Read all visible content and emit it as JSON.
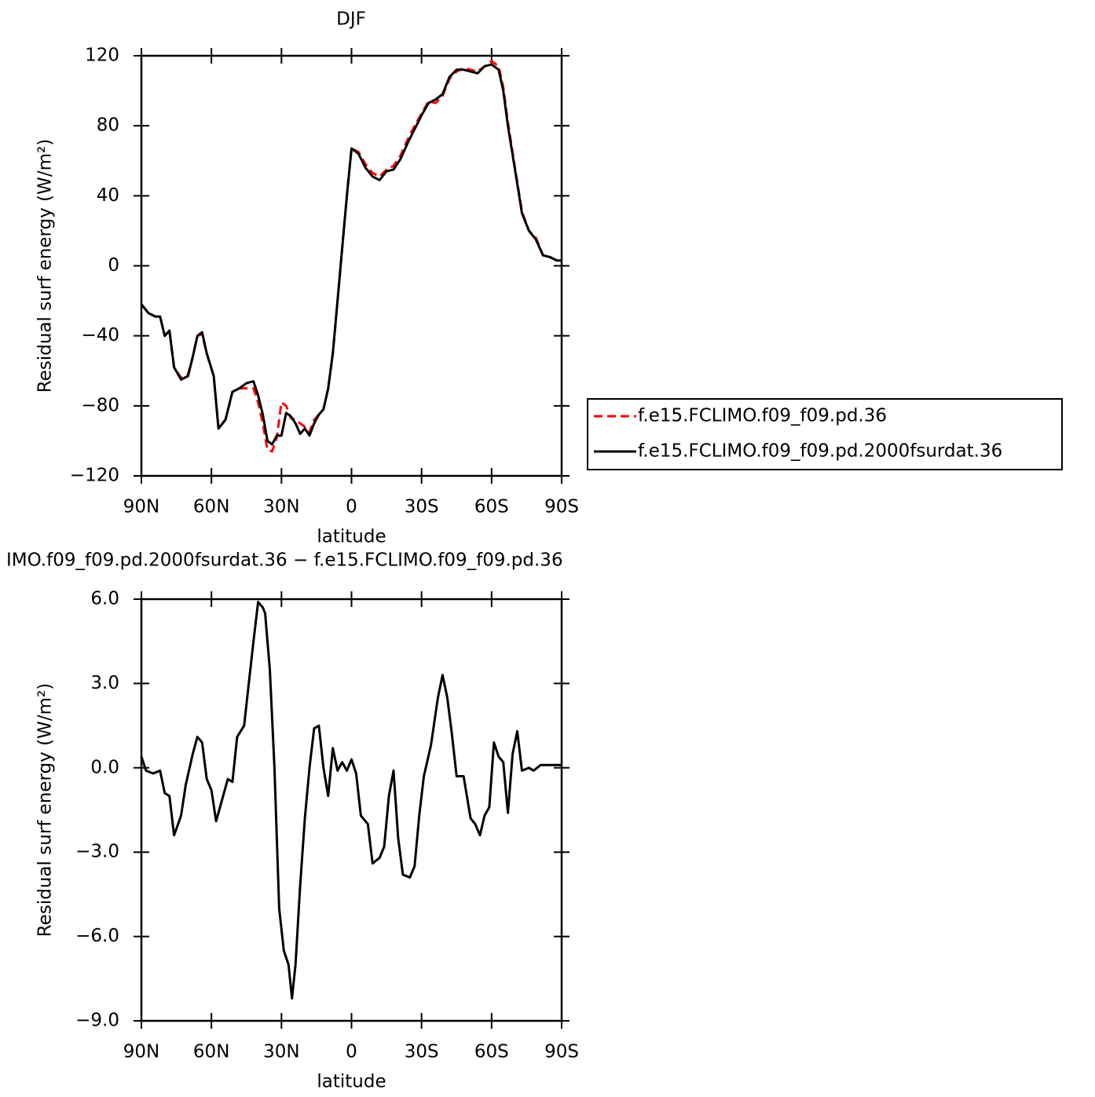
{
  "chart_data": [
    {
      "type": "line",
      "title": "DJF",
      "xlabel": "latitude",
      "ylabel": "Residual surf energy (W/m²)",
      "x": [
        90,
        87,
        84,
        82,
        80,
        78,
        76,
        73,
        70,
        68,
        66,
        64,
        62,
        59,
        57,
        54,
        51,
        48,
        45,
        42,
        40,
        38,
        36,
        34,
        32,
        30,
        28,
        26,
        24,
        22,
        20,
        18,
        16,
        14,
        12,
        10,
        8,
        6,
        4,
        2,
        0,
        -3,
        -6,
        -9,
        -12,
        -15,
        -18,
        -21,
        -24,
        -27,
        -30,
        -33,
        -36,
        -39,
        -42,
        -45,
        -48,
        -51,
        -54,
        -57,
        -60,
        -63,
        -65,
        -67,
        -70,
        -73,
        -76,
        -79,
        -82,
        -85,
        -88,
        -90
      ],
      "series": [
        {
          "name": "f.e15.FCLIMO.f09_f09.pd.36",
          "color": "#ff0000",
          "dash": true,
          "values": [
            -22,
            -27,
            -29,
            -29,
            -40,
            -37,
            -58,
            -64,
            -62,
            -52,
            -40,
            -39,
            -50,
            -63,
            -92,
            -88,
            -72,
            -70,
            -70,
            -70,
            -78,
            -90,
            -105,
            -106,
            -98,
            -78,
            -80,
            -87,
            -88,
            -90,
            -92,
            -95,
            -88,
            -85,
            -82,
            -70,
            -50,
            -20,
            10,
            40,
            67,
            65,
            58,
            53,
            51,
            55,
            57,
            63,
            72,
            80,
            87,
            94,
            93,
            97,
            107,
            111,
            113,
            112,
            111,
            114,
            117,
            114,
            102,
            82,
            56,
            31,
            20,
            16,
            6,
            5,
            3,
            3
          ]
        },
        {
          "name": "f.e15.FCLIMO.f09_f09.pd.2000fsurdat.36",
          "color": "#000000",
          "dash": false,
          "values": [
            -22,
            -27,
            -29,
            -29,
            -40,
            -37,
            -58,
            -65,
            -63,
            -52,
            -40,
            -38,
            -50,
            -63,
            -93,
            -88,
            -72,
            -70,
            -67,
            -66,
            -74,
            -85,
            -100,
            -102,
            -97,
            -97,
            -84,
            -86,
            -90,
            -96,
            -93,
            -97,
            -90,
            -85,
            -82,
            -70,
            -50,
            -20,
            10,
            40,
            67,
            64,
            56,
            51,
            49,
            54,
            55,
            61,
            70,
            78,
            86,
            93,
            95,
            98,
            108,
            112,
            112,
            111,
            110,
            114,
            115,
            112,
            100,
            80,
            55,
            30,
            20,
            15,
            6,
            5,
            3,
            3
          ]
        }
      ],
      "xlim": [
        90,
        -90
      ],
      "xticks": [
        {
          "value": 90,
          "label": "90N"
        },
        {
          "value": 60,
          "label": "60N"
        },
        {
          "value": 30,
          "label": "30N"
        },
        0,
        {
          "value": -30,
          "label": "30S"
        },
        {
          "value": -60,
          "label": "60S"
        },
        {
          "value": -90,
          "label": "90S"
        }
      ],
      "ylim": [
        -120,
        120
      ],
      "yticks": [
        {
          "value": -120,
          "label": "−120"
        },
        {
          "value": -80,
          "label": "−80"
        },
        {
          "value": -40,
          "label": "−40"
        },
        0,
        40,
        80,
        120
      ],
      "legend": "right"
    },
    {
      "type": "line",
      "title": "IMO.f09_f09.pd.2000fsurdat.36 − f.e15.FCLIMO.f09_f09.pd.36",
      "xlabel": "latitude",
      "ylabel": "Residual surf energy (W/m²)",
      "x": [
        90,
        88,
        85,
        82,
        80,
        78,
        76,
        73,
        71,
        68,
        66,
        64,
        62,
        60,
        58,
        56,
        53,
        51,
        49,
        46,
        44,
        42,
        40,
        38,
        37,
        35,
        33,
        31,
        29,
        27,
        25.5,
        24,
        22,
        20,
        18,
        16,
        14,
        12,
        10,
        8,
        6,
        4,
        2,
        0,
        -2,
        -4,
        -7,
        -9,
        -12,
        -14,
        -16,
        -18,
        -20,
        -22,
        -25,
        -27,
        -29,
        -31,
        -34,
        -37,
        -39,
        -41,
        -43,
        -45,
        -48,
        -51,
        -53,
        -55,
        -57,
        -59,
        -61,
        -63,
        -65,
        -67,
        -69,
        -71,
        -73,
        -76,
        -78,
        -81,
        -85,
        -90
      ],
      "series": [
        {
          "name": "difference",
          "color": "#000000",
          "dash": false,
          "values": [
            0.4,
            -0.1,
            -0.2,
            -0.1,
            -0.9,
            -1.0,
            -2.4,
            -1.7,
            -0.6,
            0.5,
            1.1,
            0.9,
            -0.4,
            -0.8,
            -1.9,
            -1.3,
            -0.4,
            -0.5,
            1.1,
            1.5,
            3.0,
            4.5,
            5.9,
            5.7,
            5.5,
            3.5,
            0,
            -5.0,
            -6.5,
            -7.0,
            -8.2,
            -7.0,
            -4.2,
            -1.8,
            0,
            1.4,
            1.5,
            0,
            -1.0,
            0.7,
            -0.1,
            0.2,
            -0.1,
            0.3,
            -0.2,
            -1.7,
            -2.0,
            -3.4,
            -3.2,
            -2.8,
            -1.0,
            -0.1,
            -2.5,
            -3.8,
            -3.9,
            -3.5,
            -1.7,
            -0.3,
            0.8,
            2.5,
            3.3,
            2.5,
            1.2,
            -0.3,
            -0.3,
            -1.8,
            -2.0,
            -2.4,
            -1.7,
            -1.4,
            0.9,
            0.4,
            0.2,
            -1.6,
            0.5,
            1.3,
            -0.1,
            0.0,
            -0.1,
            0.1,
            0.1,
            0.1
          ]
        }
      ],
      "xlim": [
        90,
        -90
      ],
      "xticks": [
        {
          "value": 90,
          "label": "90N"
        },
        {
          "value": 60,
          "label": "60N"
        },
        {
          "value": 30,
          "label": "30N"
        },
        0,
        {
          "value": -30,
          "label": "30S"
        },
        {
          "value": -60,
          "label": "60S"
        },
        {
          "value": -90,
          "label": "90S"
        }
      ],
      "ylim": [
        -9,
        6
      ],
      "yticks": [
        {
          "value": -9,
          "label": "−9.0"
        },
        {
          "value": -6,
          "label": "−6.0"
        },
        {
          "value": -3,
          "label": "−3.0"
        },
        {
          "value": 0,
          "label": "0.0"
        },
        {
          "value": 3,
          "label": "3.0"
        },
        {
          "value": 6,
          "label": "6.0"
        }
      ]
    }
  ]
}
